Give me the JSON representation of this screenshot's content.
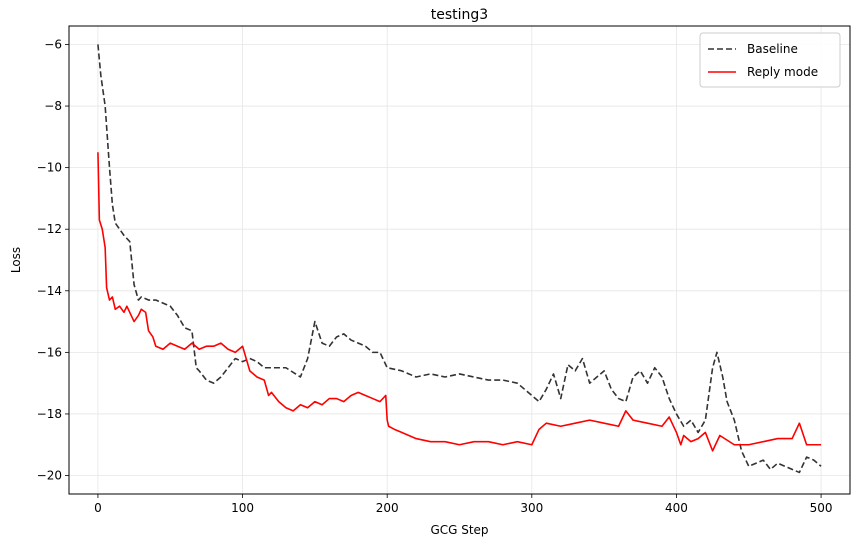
{
  "chart_data": {
    "type": "line",
    "title": "testing3",
    "xlabel": "GCG Step",
    "ylabel": "Loss",
    "xlim": [
      -20,
      520
    ],
    "ylim": [
      -20.6,
      -5.4
    ],
    "x_ticks": [
      0,
      100,
      200,
      300,
      400,
      500
    ],
    "y_ticks": [
      -6,
      -8,
      -10,
      -12,
      -14,
      -16,
      -18,
      -20
    ],
    "grid": true,
    "legend_position": "top-right",
    "series": [
      {
        "name": "Baseline",
        "color": "#333333",
        "dash": "dashed",
        "x": [
          0,
          2,
          5,
          8,
          10,
          12,
          15,
          18,
          22,
          25,
          28,
          30,
          35,
          40,
          45,
          50,
          55,
          60,
          65,
          68,
          70,
          75,
          80,
          85,
          90,
          95,
          100,
          105,
          110,
          115,
          120,
          130,
          140,
          145,
          150,
          155,
          160,
          165,
          170,
          175,
          180,
          185,
          190,
          195,
          200,
          210,
          220,
          230,
          240,
          250,
          260,
          270,
          280,
          290,
          300,
          305,
          310,
          315,
          320,
          325,
          330,
          335,
          340,
          345,
          350,
          355,
          360,
          365,
          370,
          375,
          380,
          385,
          390,
          395,
          400,
          405,
          410,
          415,
          420,
          425,
          428,
          432,
          435,
          440,
          445,
          450,
          455,
          460,
          465,
          470,
          475,
          480,
          485,
          490,
          495,
          500
        ],
        "y": [
          -6.0,
          -7.0,
          -8.0,
          -10.0,
          -11.2,
          -11.8,
          -12.0,
          -12.2,
          -12.4,
          -13.8,
          -14.3,
          -14.2,
          -14.3,
          -14.3,
          -14.4,
          -14.5,
          -14.8,
          -15.2,
          -15.3,
          -16.5,
          -16.6,
          -16.9,
          -17.0,
          -16.8,
          -16.5,
          -16.2,
          -16.3,
          -16.2,
          -16.3,
          -16.5,
          -16.5,
          -16.5,
          -16.8,
          -16.2,
          -15.0,
          -15.7,
          -15.8,
          -15.5,
          -15.4,
          -15.6,
          -15.7,
          -15.8,
          -16.0,
          -16.0,
          -16.5,
          -16.6,
          -16.8,
          -16.7,
          -16.8,
          -16.7,
          -16.8,
          -16.9,
          -16.9,
          -17.0,
          -17.4,
          -17.6,
          -17.2,
          -16.7,
          -17.5,
          -16.4,
          -16.6,
          -16.2,
          -17.0,
          -16.8,
          -16.6,
          -17.2,
          -17.5,
          -17.6,
          -16.8,
          -16.6,
          -17.0,
          -16.5,
          -16.8,
          -17.5,
          -18.0,
          -18.4,
          -18.2,
          -18.6,
          -18.2,
          -16.5,
          -16.0,
          -16.8,
          -17.6,
          -18.2,
          -19.2,
          -19.7,
          -19.6,
          -19.5,
          -19.8,
          -19.6,
          -19.7,
          -19.8,
          -19.9,
          -19.4,
          -19.5,
          -19.7
        ]
      },
      {
        "name": "Reply mode",
        "color": "#ff0000",
        "dash": "solid",
        "x": [
          0,
          1,
          3,
          5,
          6,
          8,
          10,
          12,
          15,
          18,
          20,
          25,
          28,
          30,
          33,
          35,
          38,
          40,
          45,
          50,
          55,
          60,
          65,
          70,
          75,
          80,
          85,
          90,
          95,
          100,
          105,
          110,
          115,
          118,
          120,
          125,
          130,
          135,
          140,
          145,
          150,
          155,
          160,
          165,
          170,
          175,
          180,
          185,
          190,
          195,
          199,
          200,
          201,
          205,
          210,
          220,
          230,
          240,
          250,
          260,
          270,
          280,
          290,
          300,
          305,
          310,
          320,
          330,
          340,
          350,
          360,
          365,
          370,
          380,
          390,
          395,
          400,
          403,
          405,
          410,
          415,
          420,
          425,
          430,
          440,
          450,
          460,
          470,
          480,
          485,
          490,
          495,
          500
        ],
        "y": [
          -9.5,
          -11.7,
          -12.0,
          -12.6,
          -13.9,
          -14.3,
          -14.2,
          -14.6,
          -14.5,
          -14.7,
          -14.5,
          -15.0,
          -14.8,
          -14.6,
          -14.7,
          -15.3,
          -15.5,
          -15.8,
          -15.9,
          -15.7,
          -15.8,
          -15.9,
          -15.7,
          -15.9,
          -15.8,
          -15.8,
          -15.7,
          -15.9,
          -16.0,
          -15.8,
          -16.6,
          -16.8,
          -16.9,
          -17.4,
          -17.3,
          -17.6,
          -17.8,
          -17.9,
          -17.7,
          -17.8,
          -17.6,
          -17.7,
          -17.5,
          -17.5,
          -17.6,
          -17.4,
          -17.3,
          -17.4,
          -17.5,
          -17.6,
          -17.4,
          -18.2,
          -18.4,
          -18.5,
          -18.6,
          -18.8,
          -18.9,
          -18.9,
          -19.0,
          -18.9,
          -18.9,
          -19.0,
          -18.9,
          -19.0,
          -18.5,
          -18.3,
          -18.4,
          -18.3,
          -18.2,
          -18.3,
          -18.4,
          -17.9,
          -18.2,
          -18.3,
          -18.4,
          -18.1,
          -18.6,
          -19.0,
          -18.7,
          -18.9,
          -18.8,
          -18.6,
          -19.2,
          -18.7,
          -19.0,
          -19.0,
          -18.9,
          -18.8,
          -18.8,
          -18.3,
          -19.0,
          -19.0,
          -19.0
        ]
      }
    ]
  }
}
